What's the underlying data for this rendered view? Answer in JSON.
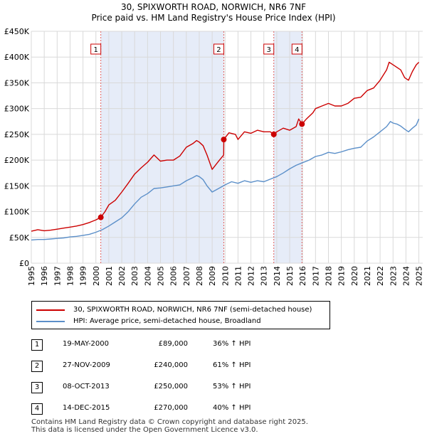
{
  "chart_data": {
    "type": "line",
    "title": "30, SPIXWORTH ROAD, NORWICH, NR6 7NF",
    "subtitle": "Price paid vs. HM Land Registry's House Price Index (HPI)",
    "xlabel": "",
    "ylabel": "",
    "xlim": [
      1995.0,
      2025.3
    ],
    "ylim": [
      0,
      450000
    ],
    "yticks": [
      0,
      50000,
      100000,
      150000,
      200000,
      250000,
      300000,
      350000,
      400000,
      450000
    ],
    "ytick_labels": [
      "£0",
      "£50K",
      "£100K",
      "£150K",
      "£200K",
      "£250K",
      "£300K",
      "£350K",
      "£400K",
      "£450K"
    ],
    "xticks": [
      1995,
      1996,
      1997,
      1998,
      1999,
      2000,
      2001,
      2002,
      2003,
      2004,
      2005,
      2006,
      2007,
      2008,
      2009,
      2010,
      2011,
      2012,
      2013,
      2014,
      2015,
      2016,
      2017,
      2018,
      2019,
      2020,
      2021,
      2022,
      2023,
      2024,
      2025
    ],
    "xtick_labels": [
      "1995",
      "1996",
      "1997",
      "1998",
      "1999",
      "2000",
      "2001",
      "2002",
      "2003",
      "2004",
      "2005",
      "2006",
      "2007",
      "2008",
      "2009",
      "2010",
      "2011",
      "2012",
      "2013",
      "2014",
      "2015",
      "2016",
      "2017",
      "2018",
      "2019",
      "2020",
      "2021",
      "2022",
      "2023",
      "2024",
      "2025"
    ],
    "grid": true,
    "shaded_periods": [
      [
        2000.38,
        2009.9
      ],
      [
        2013.77,
        2015.95
      ]
    ],
    "series": [
      {
        "name": "30, SPIXWORTH ROAD, NORWICH, NR6 7NF (semi-detached house)",
        "color": "#cc0000",
        "x": [
          1995.0,
          1995.5,
          1996.0,
          1996.5,
          1997.0,
          1997.5,
          1998.0,
          1998.5,
          1999.0,
          1999.5,
          2000.0,
          2000.38,
          2000.7,
          2001.0,
          2001.5,
          2002.0,
          2002.5,
          2003.0,
          2003.5,
          2004.0,
          2004.5,
          2005.0,
          2005.5,
          2006.0,
          2006.5,
          2007.0,
          2007.5,
          2007.8,
          2008.0,
          2008.3,
          2008.6,
          2009.0,
          2009.5,
          2009.89,
          2009.9,
          2010.3,
          2010.8,
          2011.0,
          2011.5,
          2012.0,
          2012.5,
          2013.0,
          2013.5,
          2013.77,
          2014.0,
          2014.5,
          2015.0,
          2015.5,
          2015.7,
          2015.95,
          2016.3,
          2016.8,
          2017.0,
          2017.5,
          2018.0,
          2018.5,
          2019.0,
          2019.5,
          2020.0,
          2020.5,
          2021.0,
          2021.5,
          2022.0,
          2022.5,
          2022.7,
          2023.0,
          2023.3,
          2023.6,
          2023.9,
          2024.2,
          2024.5,
          2024.8,
          2025.0
        ],
        "values": [
          62000,
          65000,
          63000,
          64000,
          66000,
          68000,
          70000,
          72000,
          75000,
          79000,
          84000,
          89000,
          100000,
          113000,
          122000,
          138000,
          155000,
          173000,
          185000,
          196000,
          210000,
          198000,
          200000,
          200000,
          208000,
          225000,
          232000,
          238000,
          235000,
          228000,
          210000,
          182000,
          198000,
          210000,
          240000,
          253000,
          250000,
          240000,
          255000,
          252000,
          258000,
          255000,
          255000,
          250000,
          255000,
          262000,
          258000,
          265000,
          280000,
          270000,
          280000,
          292000,
          300000,
          305000,
          310000,
          305000,
          305000,
          310000,
          320000,
          322000,
          335000,
          340000,
          355000,
          375000,
          390000,
          385000,
          380000,
          375000,
          360000,
          355000,
          372000,
          385000,
          390000
        ]
      },
      {
        "name": "HPI: Average price, semi-detached house, Broadland",
        "color": "#5b8fc9",
        "x": [
          1995.0,
          1995.5,
          1996.0,
          1996.5,
          1997.0,
          1997.5,
          1998.0,
          1998.5,
          1999.0,
          1999.5,
          2000.0,
          2000.5,
          2001.0,
          2001.5,
          2002.0,
          2002.5,
          2003.0,
          2003.5,
          2004.0,
          2004.5,
          2005.0,
          2005.5,
          2006.0,
          2006.5,
          2007.0,
          2007.5,
          2007.8,
          2008.0,
          2008.3,
          2008.6,
          2009.0,
          2009.5,
          2010.0,
          2010.5,
          2011.0,
          2011.5,
          2012.0,
          2012.5,
          2013.0,
          2013.5,
          2014.0,
          2014.5,
          2015.0,
          2015.5,
          2016.0,
          2016.5,
          2017.0,
          2017.5,
          2018.0,
          2018.5,
          2019.0,
          2019.5,
          2020.0,
          2020.5,
          2021.0,
          2021.5,
          2022.0,
          2022.5,
          2022.8,
          2023.0,
          2023.3,
          2023.6,
          2023.9,
          2024.2,
          2024.5,
          2024.8,
          2025.0
        ],
        "values": [
          45000,
          46000,
          46000,
          47000,
          48000,
          49000,
          51000,
          52000,
          54000,
          56000,
          60000,
          65000,
          72000,
          80000,
          88000,
          100000,
          115000,
          128000,
          135000,
          145000,
          146000,
          148000,
          150000,
          152000,
          160000,
          166000,
          170000,
          168000,
          162000,
          150000,
          138000,
          145000,
          152000,
          158000,
          155000,
          160000,
          157000,
          160000,
          158000,
          163000,
          168000,
          175000,
          183000,
          190000,
          195000,
          200000,
          207000,
          210000,
          215000,
          213000,
          216000,
          220000,
          223000,
          225000,
          237000,
          245000,
          255000,
          265000,
          275000,
          272000,
          270000,
          266000,
          260000,
          255000,
          262000,
          268000,
          280000
        ]
      }
    ],
    "transactions": [
      {
        "num": "1",
        "x": 2000.38,
        "value": 89000
      },
      {
        "num": "2",
        "x": 2009.9,
        "value": 240000
      },
      {
        "num": "3",
        "x": 2013.77,
        "value": 250000
      },
      {
        "num": "4",
        "x": 2015.95,
        "value": 270000
      }
    ]
  },
  "legend": {
    "property_label": "30, SPIXWORTH ROAD, NORWICH, NR6 7NF (semi-detached house)",
    "hpi_label": "HPI: Average price, semi-detached house, Broadland",
    "property_color": "#cc0000",
    "hpi_color": "#5b8fc9"
  },
  "table": {
    "rows": [
      {
        "num": "1",
        "date": "19-MAY-2000",
        "price": "£89,000",
        "hpi": "36% ↑ HPI"
      },
      {
        "num": "2",
        "date": "27-NOV-2009",
        "price": "£240,000",
        "hpi": "61% ↑ HPI"
      },
      {
        "num": "3",
        "date": "08-OCT-2013",
        "price": "£250,000",
        "hpi": "53% ↑ HPI"
      },
      {
        "num": "4",
        "date": "14-DEC-2015",
        "price": "£270,000",
        "hpi": "40% ↑ HPI"
      }
    ]
  },
  "footer": {
    "line1": "Contains HM Land Registry data © Crown copyright and database right 2025.",
    "line2": "This data is licensed under the Open Government Licence v3.0."
  }
}
